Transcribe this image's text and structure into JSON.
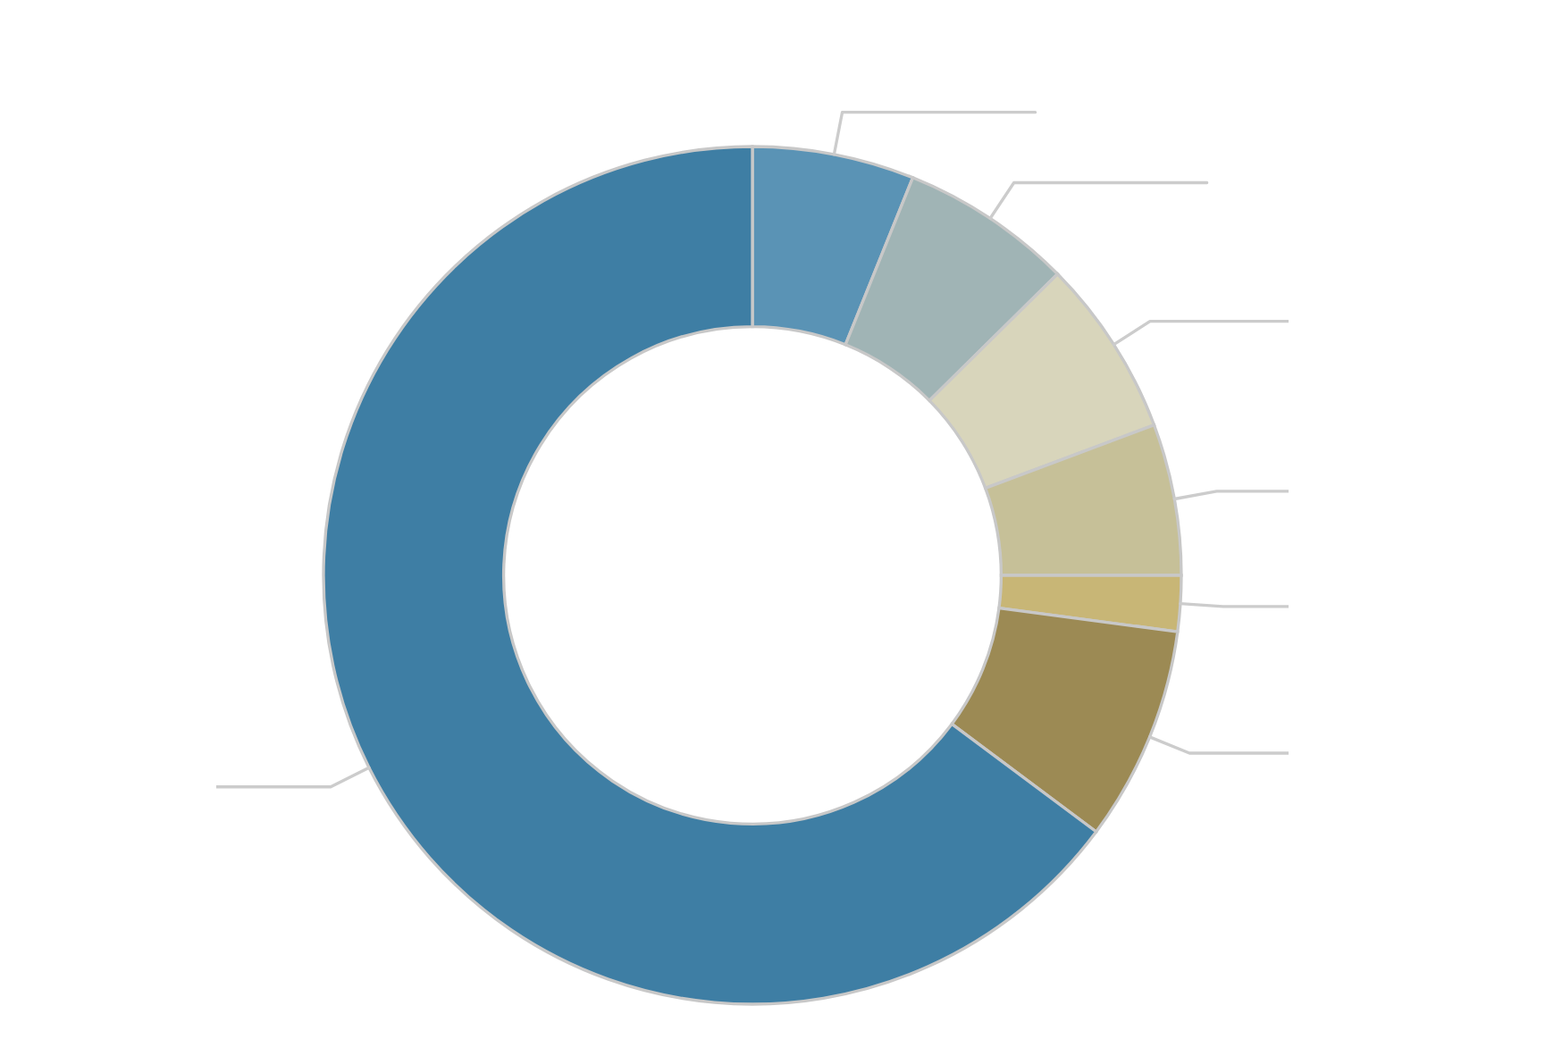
{
  "chart_data": {
    "type": "donut",
    "categories": [
      null,
      null,
      null,
      null,
      null,
      null,
      null
    ],
    "values": [
      6.1,
      6.5,
      6.7,
      5.7,
      2.1,
      8.1,
      64.8
    ],
    "colors": [
      "#5a93b5",
      "#a0b4b5",
      "#d8d5bb",
      "#c6c098",
      "#c8b676",
      "#9c8a54",
      "#3e7ea4"
    ]
  }
}
